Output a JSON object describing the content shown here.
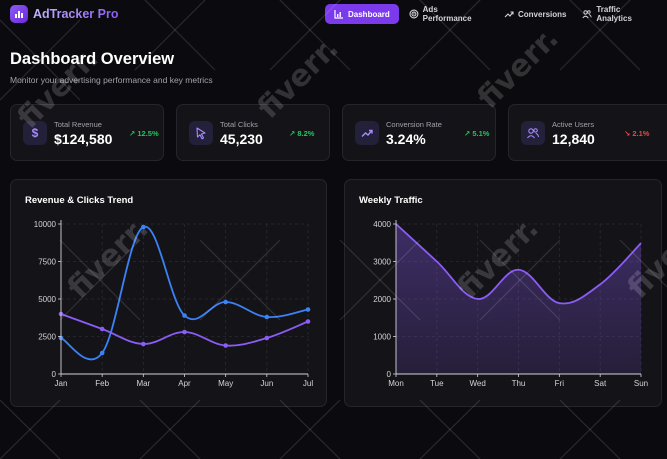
{
  "app": {
    "name": "AdTracker Pro"
  },
  "nav": [
    {
      "label": "Dashboard",
      "icon": "bar-chart-icon",
      "active": true
    },
    {
      "label": "Ads Performance",
      "icon": "target-icon",
      "active": false
    },
    {
      "label": "Conversions",
      "icon": "trend-up-icon",
      "active": false
    },
    {
      "label": "Traffic Analytics",
      "icon": "users-icon",
      "active": false
    }
  ],
  "header": {
    "title": "Dashboard Overview",
    "subtitle": "Monitor your advertising performance and key metrics"
  },
  "kpis": [
    {
      "label": "Total Revenue",
      "value": "$124,580",
      "change": "↗ 12.5%",
      "trend": "up",
      "icon": "dollar-icon"
    },
    {
      "label": "Total Clicks",
      "value": "45,230",
      "change": "↗ 8.2%",
      "trend": "up",
      "icon": "cursor-icon"
    },
    {
      "label": "Conversion Rate",
      "value": "3.24%",
      "change": "↗ 5.1%",
      "trend": "up",
      "icon": "trend-up-icon"
    },
    {
      "label": "Active Users",
      "value": "12,840",
      "change": "↘ 2.1%",
      "trend": "down",
      "icon": "users-icon"
    }
  ],
  "colors": {
    "accent": "#7c3aed",
    "series_blue": "#3b82f6",
    "series_purple": "#8b5cf6",
    "positive": "#22c55e",
    "negative": "#ef4444"
  },
  "watermark": {
    "text": "fiverr."
  },
  "chart_data": [
    {
      "type": "line",
      "title": "Revenue & Clicks Trend",
      "categories": [
        "Jan",
        "Feb",
        "Mar",
        "Apr",
        "May",
        "Jun",
        "Jul"
      ],
      "series": [
        {
          "values": [
            2400,
            1400,
            9800,
            3900,
            4800,
            3800,
            4300
          ],
          "color": "#3b82f6"
        },
        {
          "values": [
            4000,
            3000,
            2000,
            2800,
            1900,
            2400,
            3500
          ],
          "color": "#8b5cf6"
        }
      ],
      "yticks": [
        0,
        2500,
        5000,
        7500,
        10000
      ],
      "ylim": [
        0,
        10000
      ],
      "grid": true,
      "legend": "none"
    },
    {
      "type": "area",
      "title": "Weekly Traffic",
      "categories": [
        "Mon",
        "Tue",
        "Wed",
        "Thu",
        "Fri",
        "Sat",
        "Sun"
      ],
      "series": [
        {
          "values": [
            4000,
            3000,
            2000,
            2780,
            1890,
            2390,
            3490
          ],
          "color": "#8b5cf6"
        }
      ],
      "yticks": [
        0,
        1000,
        2000,
        3000,
        4000
      ],
      "ylim": [
        0,
        4000
      ],
      "grid": true,
      "legend": "none"
    }
  ]
}
